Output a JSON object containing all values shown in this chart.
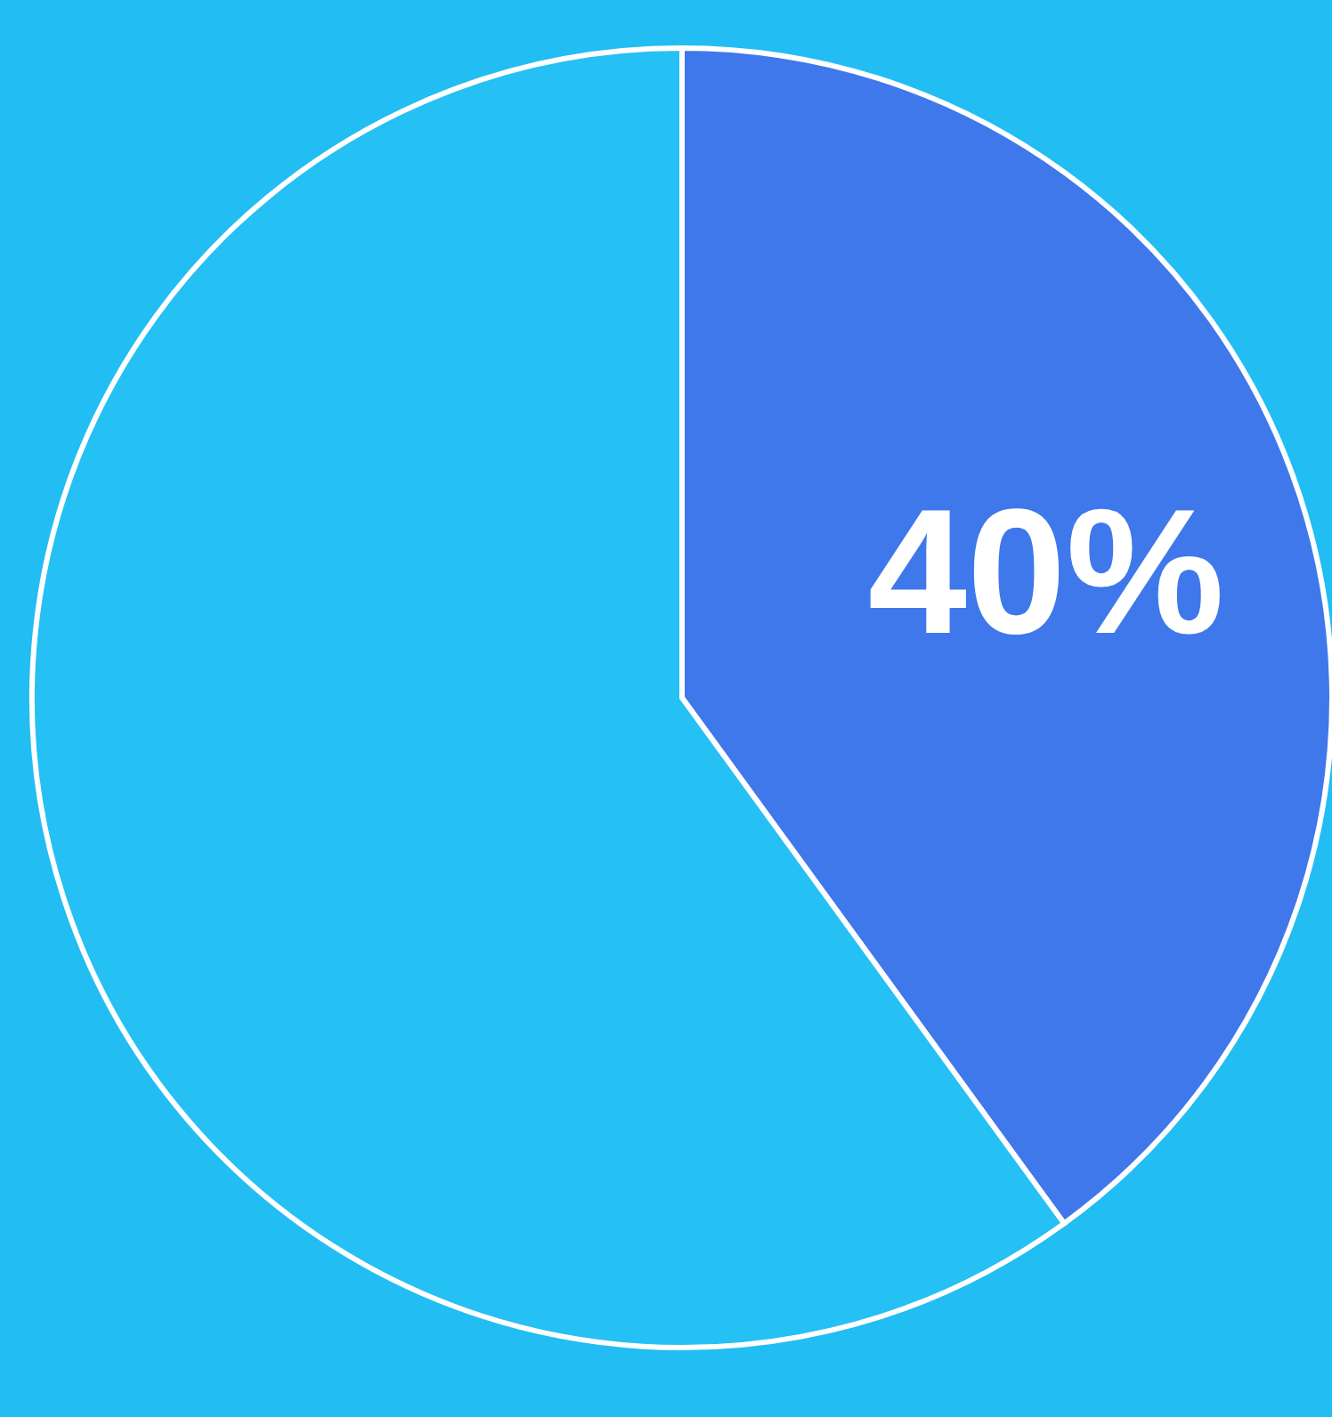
{
  "chart_data": {
    "type": "pie",
    "categories": [
      null,
      null
    ],
    "values": [
      40,
      60
    ],
    "colors": [
      "#3f78ea",
      "#25c0f4"
    ],
    "value_labels": [
      "40%",
      null
    ]
  }
}
